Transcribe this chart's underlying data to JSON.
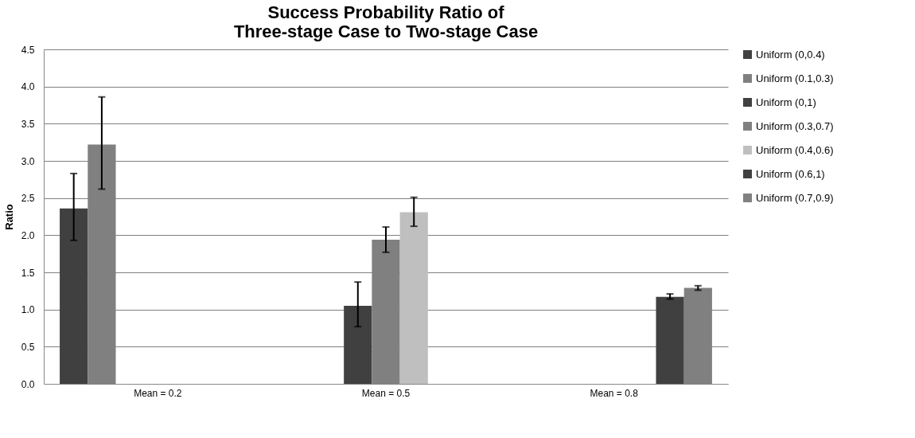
{
  "chart_data": {
    "type": "bar",
    "title": "Success Probability Ratio of\nThree-stage Case to Two-stage Case",
    "ylabel": "Ratio",
    "categories": [
      "Mean = 0.2",
      "Mean = 0.5",
      "Mean = 0.8"
    ],
    "series": [
      {
        "name": "Uniform (0,0.4)",
        "color": "#404040",
        "values": [
          2.36,
          null,
          null
        ],
        "errors": [
          [
            1.93,
            2.83
          ],
          null,
          null
        ]
      },
      {
        "name": "Uniform (0.1,0.3)",
        "color": "#808080",
        "values": [
          3.22,
          null,
          null
        ],
        "errors": [
          [
            2.62,
            3.86
          ],
          null,
          null
        ]
      },
      {
        "name": "Uniform (0,1)",
        "color": "#404040",
        "values": [
          null,
          1.05,
          null
        ],
        "errors": [
          null,
          [
            0.77,
            1.37
          ],
          null
        ]
      },
      {
        "name": "Uniform (0.3,0.7)",
        "color": "#808080",
        "values": [
          null,
          1.94,
          null
        ],
        "errors": [
          null,
          [
            1.77,
            2.11
          ],
          null
        ]
      },
      {
        "name": "Uniform (0.4,0.6)",
        "color": "#bfbfbf",
        "values": [
          null,
          2.31,
          null
        ],
        "errors": [
          null,
          [
            2.12,
            2.51
          ],
          null
        ]
      },
      {
        "name": "Uniform (0.6,1)",
        "color": "#404040",
        "values": [
          null,
          null,
          1.17
        ],
        "errors": [
          null,
          null,
          [
            1.14,
            1.21
          ]
        ]
      },
      {
        "name": "Uniform (0.7,0.9)",
        "color": "#808080",
        "values": [
          null,
          null,
          1.29
        ],
        "errors": [
          null,
          null,
          [
            1.26,
            1.32
          ]
        ]
      }
    ],
    "ylim": [
      0,
      4.5
    ],
    "yticks": [
      {
        "value": 0,
        "label": "0.0"
      },
      0.5,
      {
        "value": 1,
        "label": "1.0"
      },
      1.5,
      {
        "value": 2,
        "label": "2.0"
      },
      2.5,
      {
        "value": 3,
        "label": "3.0"
      },
      3.5,
      {
        "value": 4,
        "label": "4.0"
      },
      4.5
    ],
    "grid": "y",
    "legend": "right"
  }
}
